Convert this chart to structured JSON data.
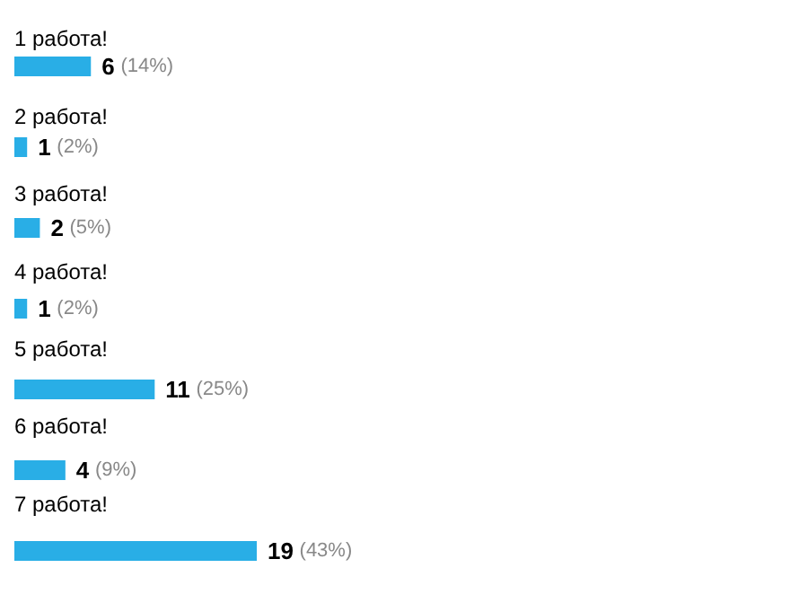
{
  "chart_data": {
    "type": "bar",
    "orientation": "horizontal",
    "categories": [
      "1 работа!",
      "2 работа!",
      "3 работа!",
      "4 работа!",
      "5 работа!",
      "6 работа!",
      "7 работа!"
    ],
    "values": [
      6,
      1,
      2,
      1,
      11,
      4,
      19
    ],
    "value_labels": [
      "6 (14%)",
      "1 (2%)",
      "2 (5%)",
      "1 (2%)",
      "11 (25%)",
      "4 (9%)",
      "19 (43%)"
    ],
    "color": "#29aee6"
  }
}
